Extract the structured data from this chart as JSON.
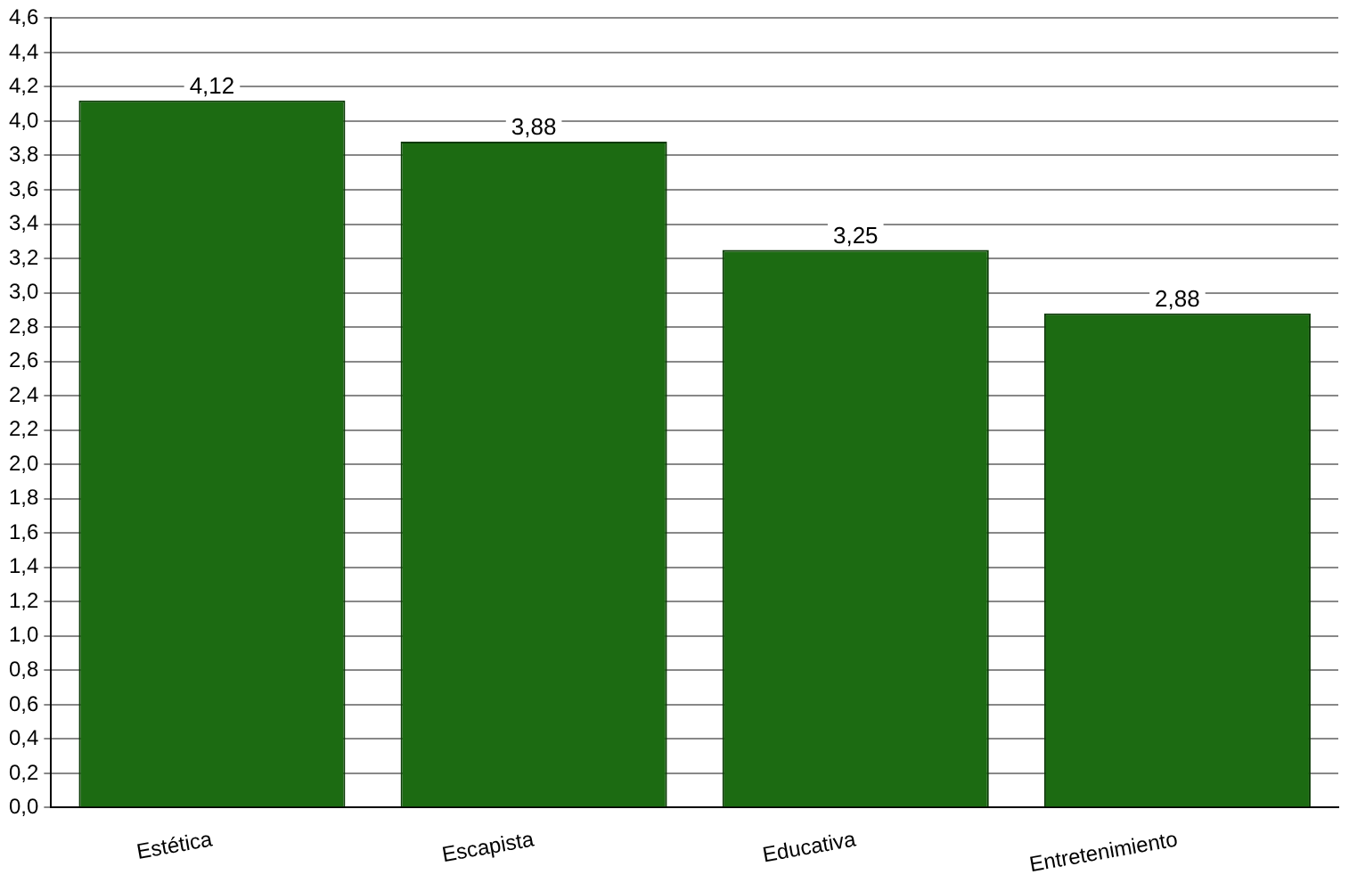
{
  "chart_data": {
    "type": "bar",
    "categories": [
      "Estética",
      "Escapista",
      "Educativa",
      "Entretenimiento"
    ],
    "values": [
      4.12,
      3.88,
      3.25,
      2.88
    ],
    "value_labels": [
      "4,12",
      "3,88",
      "3,25",
      "2,88"
    ],
    "color": "#1c6b12",
    "ylim": [
      0,
      4.6
    ],
    "yticks": [
      {
        "value": 0,
        "label": "0,0"
      },
      {
        "value": 0.2,
        "label": "0,2"
      },
      {
        "value": 0.4,
        "label": "0,4"
      },
      {
        "value": 0.6,
        "label": "0,6"
      },
      {
        "value": 0.8,
        "label": "0,8"
      },
      {
        "value": 1,
        "label": "1,0"
      },
      {
        "value": 1.2,
        "label": "1,2"
      },
      {
        "value": 1.4,
        "label": "1,4"
      },
      {
        "value": 1.6,
        "label": "1,6"
      },
      {
        "value": 1.8,
        "label": "1,8"
      },
      {
        "value": 2,
        "label": "2,0"
      },
      {
        "value": 2.2,
        "label": "2,2"
      },
      {
        "value": 2.4,
        "label": "2,4"
      },
      {
        "value": 2.6,
        "label": "2,6"
      },
      {
        "value": 2.8,
        "label": "2,8"
      },
      {
        "value": 3,
        "label": "3,0"
      },
      {
        "value": 3.2,
        "label": "3,2"
      },
      {
        "value": 3.4,
        "label": "3,4"
      },
      {
        "value": 3.6,
        "label": "3,6"
      },
      {
        "value": 3.8,
        "label": "3,8"
      },
      {
        "value": 4,
        "label": "4,0"
      },
      {
        "value": 4.2,
        "label": "4,2"
      },
      {
        "value": 4.4,
        "label": "4,4"
      },
      {
        "value": 4.6,
        "label": "4,6"
      }
    ],
    "grid": "y",
    "legend": false
  }
}
